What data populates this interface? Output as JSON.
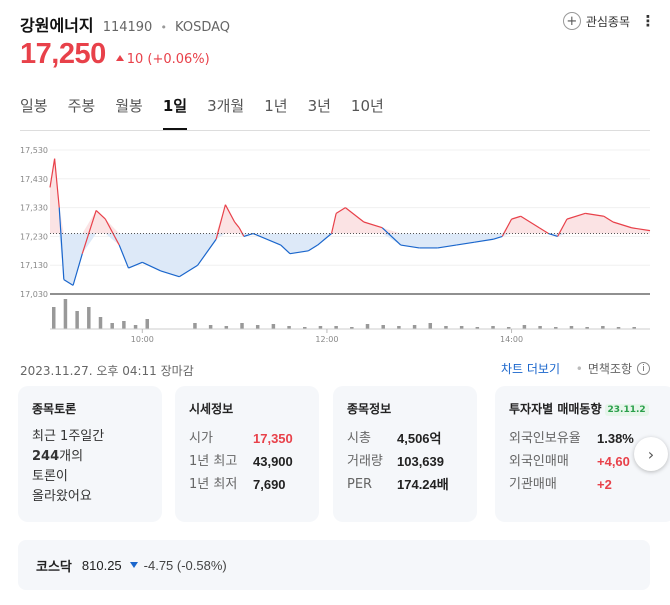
{
  "header": {
    "name": "강원에너지",
    "code": "114190",
    "market": "KOSDAQ",
    "watch_label": "관심종목",
    "more_label": "⋮"
  },
  "price": {
    "current": "17,250",
    "change": "10",
    "change_pct": "(+0.06%)",
    "up_color": "#e8414a",
    "down_color": "#1a66cc"
  },
  "tabs": [
    "일봉",
    "주봉",
    "월봉",
    "1일",
    "3개월",
    "1년",
    "3년",
    "10년"
  ],
  "active_tab": "1일",
  "chart_data": {
    "type": "area",
    "prev_close": 17240,
    "y_ticks": [
      "17,530",
      "17,430",
      "17,330",
      "17,230",
      "17,130",
      "17,030"
    ],
    "y_tick_values": [
      17530,
      17430,
      17330,
      17230,
      17130,
      17030
    ],
    "x_ticks": [
      "10:00",
      "12:00",
      "14:00"
    ],
    "x": [
      9.0,
      9.05,
      9.1,
      9.15,
      9.25,
      9.35,
      9.5,
      9.6,
      9.75,
      9.85,
      10.0,
      10.2,
      10.4,
      10.6,
      10.8,
      10.9,
      11.0,
      11.05,
      11.1,
      11.2,
      11.5,
      11.6,
      11.8,
      11.9,
      12.05,
      12.1,
      12.2,
      12.4,
      12.6,
      12.8,
      13.0,
      13.2,
      13.4,
      13.6,
      13.8,
      13.9,
      14.0,
      14.1,
      14.3,
      14.4,
      14.5,
      14.6,
      14.8,
      15.0,
      15.1,
      15.3,
      15.5
    ],
    "y": [
      17400,
      17500,
      17330,
      17080,
      17060,
      17170,
      17320,
      17290,
      17200,
      17120,
      17140,
      17110,
      17090,
      17130,
      17220,
      17340,
      17280,
      17260,
      17230,
      17240,
      17200,
      17170,
      17180,
      17200,
      17240,
      17310,
      17330,
      17280,
      17260,
      17200,
      17190,
      17190,
      17200,
      17210,
      17220,
      17230,
      17290,
      17300,
      17260,
      17240,
      17230,
      17290,
      17310,
      17300,
      17280,
      17260,
      17250
    ],
    "volume_note": "volume bars",
    "volumes": [
      22,
      30,
      18,
      22,
      12,
      6,
      8,
      4,
      10,
      6,
      4,
      3,
      6,
      4,
      5,
      3,
      2,
      3,
      3,
      2,
      5,
      4,
      3,
      4,
      6,
      3,
      3,
      2,
      3,
      2,
      4,
      3,
      2,
      3,
      2,
      3,
      2,
      2,
      3,
      2,
      4,
      3,
      2,
      3,
      2,
      2,
      4
    ]
  },
  "timestamp": "2023.11.27. 오후 04:11 장마감",
  "chart_more_label": "차트 더보기",
  "disclaimer_label": "면책조항",
  "cards": {
    "discussion": {
      "title": "종목토론",
      "line1": "최근 1주일간",
      "count": "244",
      "line2_suffix": "개의",
      "line3": "토론이",
      "line4": "올라왔어요"
    },
    "quote": {
      "title": "시세정보",
      "open_label": "시가",
      "open_value": "17,350",
      "high_label": "1년 최고",
      "high_value": "43,900",
      "low_label": "1년 최저",
      "low_value": "7,690"
    },
    "info": {
      "title": "종목정보",
      "cap_label": "시총",
      "cap_value": "4,506억",
      "vol_label": "거래량",
      "vol_value": "103,639",
      "per_label": "PER",
      "per_value": "174.24배"
    },
    "investor": {
      "title": "투자자별 매매동향",
      "badge": "23.11.2",
      "foreign_ratio_label": "외국인보유율",
      "foreign_ratio_value": "1.38%",
      "foreign_trade_label": "외국인매매",
      "foreign_trade_value": "+4,60",
      "inst_trade_label": "기관매매",
      "inst_trade_value": "+2"
    }
  },
  "index": {
    "name": "코스닥",
    "value": "810.25",
    "change": "-4.75 (-0.58%)"
  }
}
